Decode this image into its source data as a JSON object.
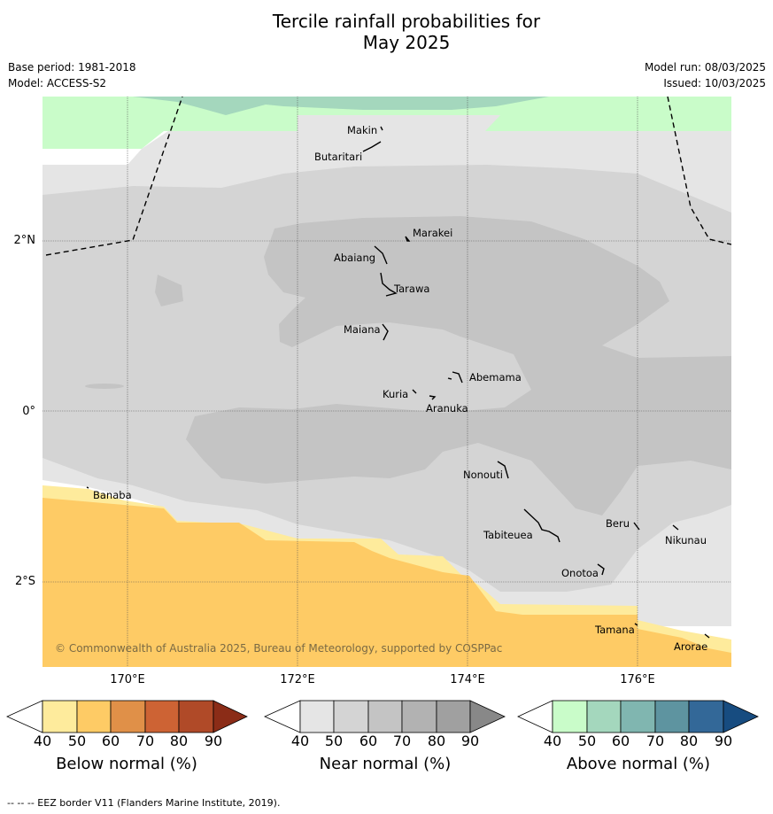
{
  "title_line1": "Tercile rainfall probabilities for",
  "title_line2": "May 2025",
  "base_period": "Base period: 1981-2018",
  "model": "Model: ACCESS-S2",
  "model_run": "Model run: 08/03/2025",
  "issued": "Issued: 10/03/2025",
  "lon_labels": [
    "170°E",
    "172°E",
    "174°E",
    "176°E"
  ],
  "lat_labels": [
    "2°N",
    "0°",
    "2°S"
  ],
  "places": [
    "Makin",
    "Butaritari",
    "Marakei",
    "Abaiang",
    "Tarawa",
    "Maiana",
    "Abemama",
    "Kuria",
    "Aranuka",
    "Nonouti",
    "Banaba",
    "Beru",
    "Tabiteuea",
    "Nikunau",
    "Onotoa",
    "Tamana",
    "Arorae"
  ],
  "credit": "© Commonwealth of Australia 2025, Bureau of Meteorology, supported by COSPPac",
  "colorbars": [
    {
      "label": "Below normal (%)",
      "ticks": [
        "40",
        "50",
        "60",
        "70",
        "80",
        "90"
      ],
      "colors": [
        "#ffffff",
        "#feeb9c",
        "#fecb65",
        "#e09048",
        "#cd6334",
        "#b04a28",
        "#8b2c17"
      ]
    },
    {
      "label": "Near normal (%)",
      "ticks": [
        "40",
        "50",
        "60",
        "70",
        "80",
        "90"
      ],
      "colors": [
        "#ffffff",
        "#e5e5e5",
        "#d4d4d4",
        "#c4c4c4",
        "#b2b2b2",
        "#a0a0a0",
        "#888888"
      ]
    },
    {
      "label": "Above normal (%)",
      "ticks": [
        "40",
        "50",
        "60",
        "70",
        "80",
        "90"
      ],
      "colors": [
        "#ffffff",
        "#c9fcc9",
        "#a4d7bd",
        "#80b6b0",
        "#5e94a0",
        "#336898",
        "#174c80"
      ]
    }
  ],
  "footer": "-- -- -- EEZ border V11 (Flanders Marine Institute, 2019)."
}
